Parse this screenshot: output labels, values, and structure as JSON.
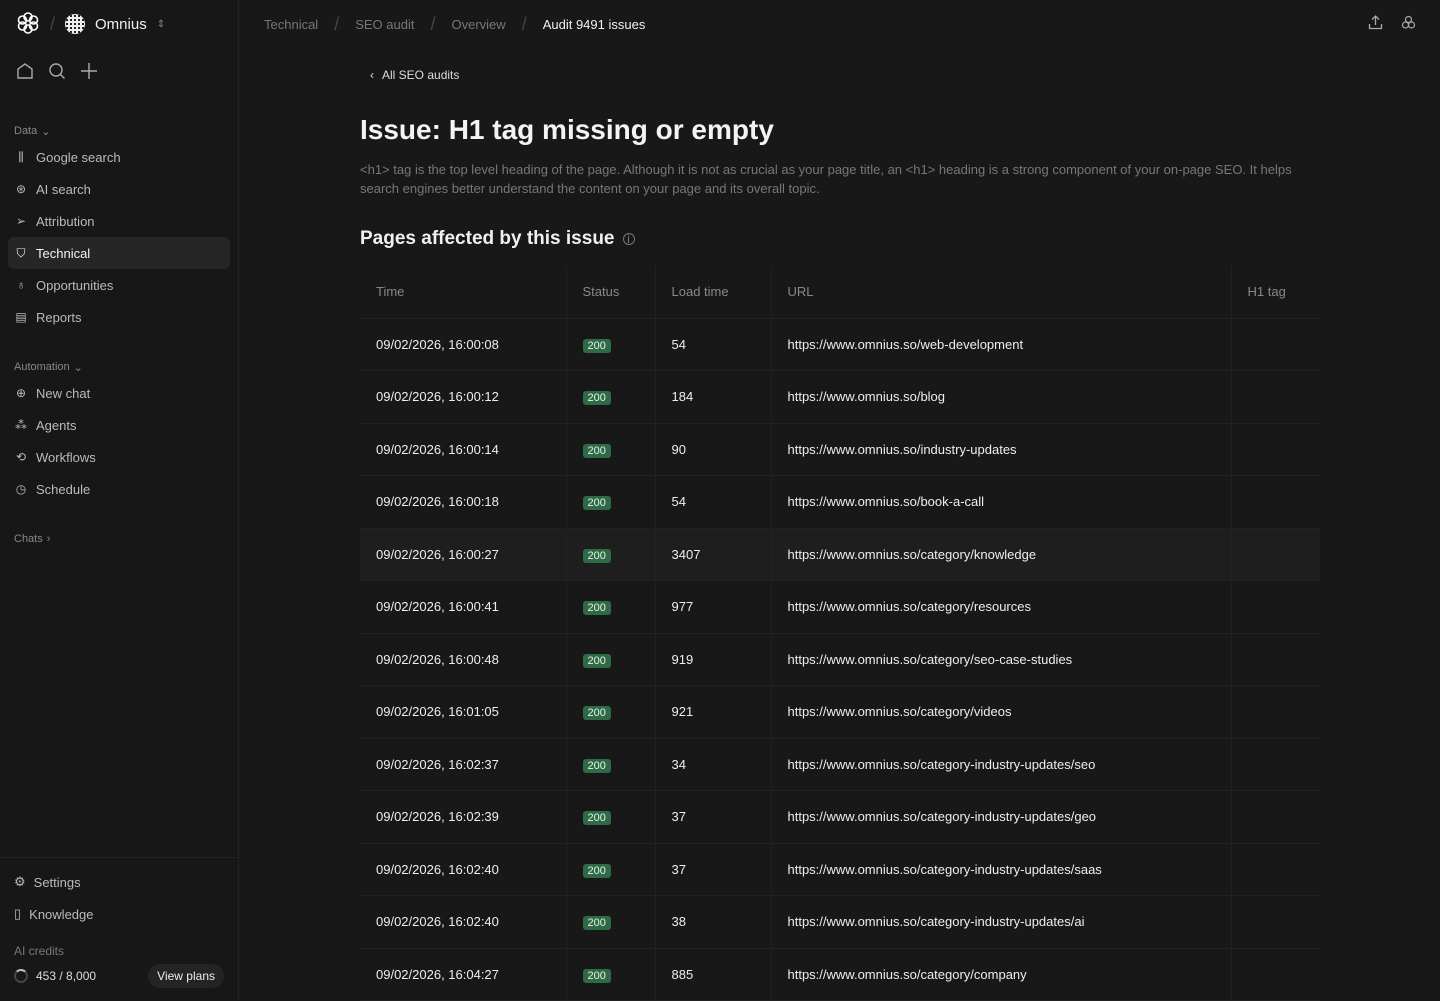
{
  "app": {
    "workspace": "Omnius"
  },
  "sidebar": {
    "data_label": "Data",
    "data_items": [
      {
        "label": "Google search",
        "icon": "bar-chart-icon"
      },
      {
        "label": "AI search",
        "icon": "brain-icon"
      },
      {
        "label": "Attribution",
        "icon": "cursor-icon"
      },
      {
        "label": "Technical",
        "icon": "shield-icon",
        "active": true
      },
      {
        "label": "Opportunities",
        "icon": "lightbulb-icon"
      },
      {
        "label": "Reports",
        "icon": "document-icon"
      }
    ],
    "automation_label": "Automation",
    "automation_items": [
      {
        "label": "New chat",
        "icon": "chat-icon"
      },
      {
        "label": "Agents",
        "icon": "agents-icon"
      },
      {
        "label": "Workflows",
        "icon": "workflow-icon"
      },
      {
        "label": "Schedule",
        "icon": "clock-icon"
      }
    ],
    "chats_label": "Chats",
    "settings": "Settings",
    "knowledge": "Knowledge",
    "credits_label": "AI credits",
    "credits": "453 / 8,000",
    "view_plans": "View plans"
  },
  "breadcrumb": [
    "Technical",
    "SEO audit",
    "Overview",
    "Audit 9491 issues"
  ],
  "page": {
    "back": "All SEO audits",
    "title": "Issue: H1 tag missing or empty",
    "description": "<h1> tag is the top level heading of the page. Although it is not as crucial as your page title, an <h1> heading is a strong component of your on-page SEO. It helps search engines better understand the content on your page and its overall topic.",
    "section": "Pages affected by this issue"
  },
  "table": {
    "columns": [
      "Time",
      "Status",
      "Load time",
      "URL",
      "H1 tag"
    ],
    "rows": [
      [
        "09/02/2026, 16:00:08",
        "200",
        "54",
        "https://www.omnius.so/web-development",
        ""
      ],
      [
        "09/02/2026, 16:00:12",
        "200",
        "184",
        "https://www.omnius.so/blog",
        ""
      ],
      [
        "09/02/2026, 16:00:14",
        "200",
        "90",
        "https://www.omnius.so/industry-updates",
        ""
      ],
      [
        "09/02/2026, 16:00:18",
        "200",
        "54",
        "https://www.omnius.so/book-a-call",
        ""
      ],
      [
        "09/02/2026, 16:00:27",
        "200",
        "3407",
        "https://www.omnius.so/category/knowledge",
        ""
      ],
      [
        "09/02/2026, 16:00:41",
        "200",
        "977",
        "https://www.omnius.so/category/resources",
        ""
      ],
      [
        "09/02/2026, 16:00:48",
        "200",
        "919",
        "https://www.omnius.so/category/seo-case-studies",
        ""
      ],
      [
        "09/02/2026, 16:01:05",
        "200",
        "921",
        "https://www.omnius.so/category/videos",
        ""
      ],
      [
        "09/02/2026, 16:02:37",
        "200",
        "34",
        "https://www.omnius.so/category-industry-updates/seo",
        ""
      ],
      [
        "09/02/2026, 16:02:39",
        "200",
        "37",
        "https://www.omnius.so/category-industry-updates/geo",
        ""
      ],
      [
        "09/02/2026, 16:02:40",
        "200",
        "37",
        "https://www.omnius.so/category-industry-updates/saas",
        ""
      ],
      [
        "09/02/2026, 16:02:40",
        "200",
        "38",
        "https://www.omnius.so/category-industry-updates/ai",
        ""
      ],
      [
        "09/02/2026, 16:04:27",
        "200",
        "885",
        "https://www.omnius.so/category/company",
        ""
      ]
    ]
  },
  "colors": {
    "status_ok": "#2f6a46",
    "background": "#181818"
  }
}
